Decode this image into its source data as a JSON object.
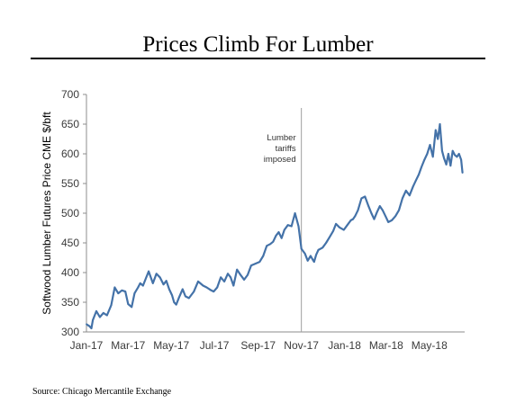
{
  "title": "Prices Climb For Lumber",
  "source": "Source:  Chicago  Mercantile Exchange",
  "chart_data": {
    "type": "line",
    "title": "Prices Climb For Lumber",
    "ylabel": "Softwood Lumber Futures Price CME $/bft",
    "xlabel": "",
    "ylim": [
      300,
      700
    ],
    "y_ticks": [
      300,
      350,
      400,
      450,
      500,
      550,
      600,
      650,
      700
    ],
    "x_tick_labels": [
      "Jan-17",
      "Mar-17",
      "May-17",
      "Jul-17",
      "Sep-17",
      "Nov-17",
      "Jan-18",
      "Mar-18",
      "May-18"
    ],
    "grid": false,
    "legend": "none",
    "line_color": "#4472a8",
    "annotation": {
      "x": "2017-11-01",
      "lines": [
        "Lumber",
        "tariffs",
        "imposed"
      ]
    },
    "series": [
      {
        "x": [
          "2017-01-01",
          "2017-01-05",
          "2017-01-08",
          "2017-01-10",
          "2017-01-15",
          "2017-01-20",
          "2017-01-25",
          "2017-01-30",
          "2017-02-05",
          "2017-02-10",
          "2017-02-15",
          "2017-02-20",
          "2017-02-25",
          "2017-03-01",
          "2017-03-06",
          "2017-03-10",
          "2017-03-15",
          "2017-03-18",
          "2017-03-22",
          "2017-03-26",
          "2017-03-30",
          "2017-04-05",
          "2017-04-10",
          "2017-04-15",
          "2017-04-20",
          "2017-04-24",
          "2017-04-28",
          "2017-05-02",
          "2017-05-05",
          "2017-05-08",
          "2017-05-12",
          "2017-05-17",
          "2017-05-21",
          "2017-05-26",
          "2017-06-02",
          "2017-06-08",
          "2017-06-15",
          "2017-06-20",
          "2017-06-25",
          "2017-06-30",
          "2017-07-05",
          "2017-07-10",
          "2017-07-15",
          "2017-07-20",
          "2017-07-24",
          "2017-07-28",
          "2017-08-02",
          "2017-08-07",
          "2017-08-12",
          "2017-08-17",
          "2017-08-22",
          "2017-08-28",
          "2017-09-03",
          "2017-09-08",
          "2017-09-13",
          "2017-09-18",
          "2017-09-22",
          "2017-09-26",
          "2017-09-30",
          "2017-10-04",
          "2017-10-08",
          "2017-10-13",
          "2017-10-18",
          "2017-10-23",
          "2017-10-28",
          "2017-11-01",
          "2017-11-06",
          "2017-11-10",
          "2017-11-14",
          "2017-11-17",
          "2017-11-19",
          "2017-11-22",
          "2017-11-25",
          "2017-12-01",
          "2017-12-06",
          "2017-12-11",
          "2017-12-16",
          "2017-12-20",
          "2017-12-25",
          "2017-12-31",
          "2018-01-05",
          "2018-01-10",
          "2018-01-13",
          "2018-01-16",
          "2018-01-20",
          "2018-01-25",
          "2018-01-30",
          "2018-02-04",
          "2018-02-08",
          "2018-02-12",
          "2018-02-16",
          "2018-02-20",
          "2018-02-24",
          "2018-02-28",
          "2018-03-04",
          "2018-03-09",
          "2018-03-14",
          "2018-03-19",
          "2018-03-24",
          "2018-03-29",
          "2018-04-03",
          "2018-04-08",
          "2018-04-12",
          "2018-04-16",
          "2018-04-20",
          "2018-04-24",
          "2018-04-28",
          "2018-05-02",
          "2018-05-06",
          "2018-05-10",
          "2018-05-13",
          "2018-05-16",
          "2018-05-19",
          "2018-05-22",
          "2018-05-25",
          "2018-05-28",
          "2018-05-31",
          "2018-06-03",
          "2018-06-06",
          "2018-06-09",
          "2018-06-12",
          "2018-06-15",
          "2018-06-17"
        ],
        "values": [
          313,
          310,
          306,
          320,
          335,
          325,
          332,
          328,
          345,
          375,
          365,
          370,
          368,
          347,
          342,
          365,
          375,
          382,
          378,
          390,
          402,
          382,
          398,
          392,
          380,
          386,
          372,
          362,
          350,
          346,
          358,
          372,
          360,
          357,
          368,
          385,
          378,
          375,
          371,
          368,
          375,
          392,
          385,
          398,
          392,
          378,
          405,
          396,
          388,
          396,
          412,
          415,
          418,
          428,
          445,
          448,
          452,
          462,
          468,
          458,
          472,
          480,
          478,
          500,
          478,
          440,
          432,
          420,
          428,
          422,
          418,
          430,
          438,
          442,
          450,
          460,
          470,
          482,
          476,
          472,
          480,
          488,
          490,
          495,
          505,
          525,
          528,
          512,
          500,
          490,
          502,
          512,
          505,
          495,
          485,
          488,
          495,
          505,
          525,
          538,
          530,
          545,
          555,
          565,
          578,
          590,
          600,
          615,
          595,
          640,
          625,
          650,
          605,
          592,
          582,
          600,
          580,
          605,
          598,
          595,
          600,
          590,
          568
        ]
      }
    ]
  }
}
